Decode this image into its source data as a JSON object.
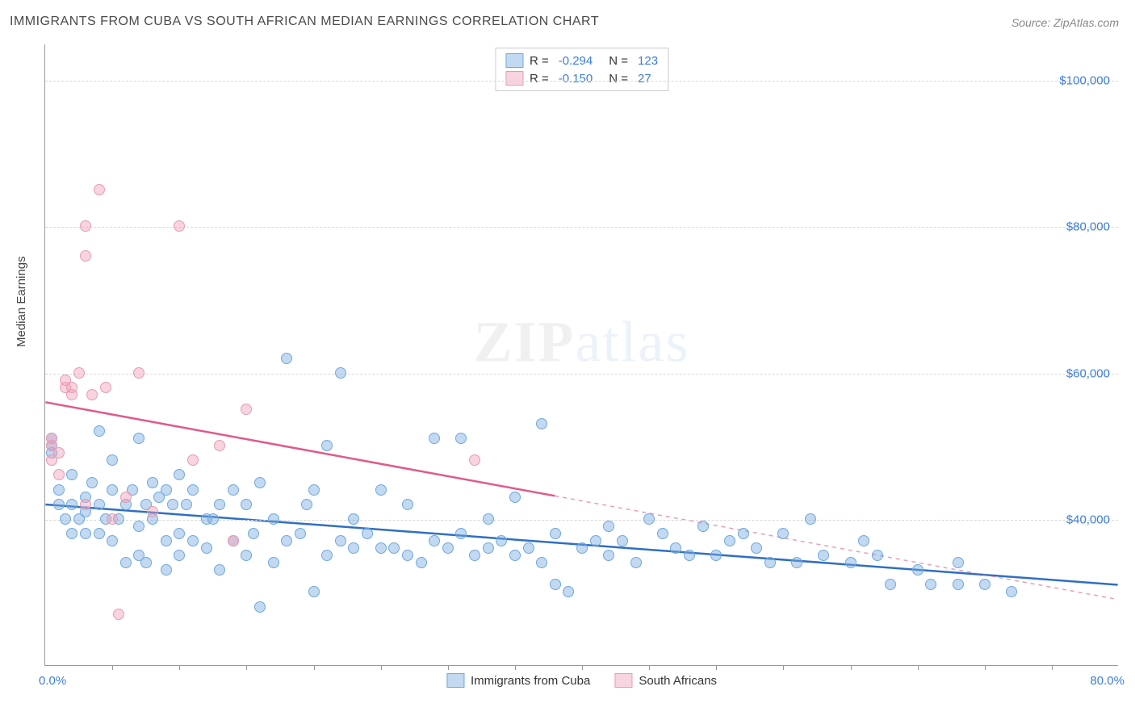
{
  "title": "IMMIGRANTS FROM CUBA VS SOUTH AFRICAN MEDIAN EARNINGS CORRELATION CHART",
  "source": "Source: ZipAtlas.com",
  "ylabel": "Median Earnings",
  "watermark_a": "ZIP",
  "watermark_b": "atlas",
  "chart": {
    "type": "scatter",
    "xlim": [
      0,
      80
    ],
    "ylim": [
      20000,
      105000
    ],
    "x_unit": "%",
    "x_start_label": "0.0%",
    "x_end_label": "80.0%",
    "y_ticks": [
      40000,
      60000,
      80000,
      100000
    ],
    "y_tick_labels": [
      "$40,000",
      "$60,000",
      "$80,000",
      "$100,000"
    ],
    "x_minor_ticks": [
      5,
      10,
      15,
      20,
      25,
      30,
      35,
      40,
      45,
      50,
      55,
      60,
      65,
      70,
      75
    ],
    "background_color": "#ffffff",
    "grid_color": "#d8d8d8",
    "axis_color": "#999999",
    "point_radius": 7,
    "series": [
      {
        "name": "Immigrants from Cuba",
        "short": "cuba",
        "fill": "rgba(120,170,225,0.45)",
        "stroke": "#6fa8dc",
        "line_color": "#2f6fc2",
        "R": "-0.294",
        "N": "123",
        "trend": {
          "x1": 0,
          "y1": 42000,
          "x2": 80,
          "y2": 31000,
          "solid_to_x": 80
        },
        "points": [
          [
            0.5,
            49000
          ],
          [
            0.5,
            50000
          ],
          [
            0.5,
            51000
          ],
          [
            1,
            42000
          ],
          [
            1,
            44000
          ],
          [
            1.5,
            40000
          ],
          [
            2,
            42000
          ],
          [
            2,
            46000
          ],
          [
            2,
            38000
          ],
          [
            2.5,
            40000
          ],
          [
            3,
            43000
          ],
          [
            3,
            41000
          ],
          [
            3,
            38000
          ],
          [
            3.5,
            45000
          ],
          [
            4,
            52000
          ],
          [
            4,
            38000
          ],
          [
            4,
            42000
          ],
          [
            4.5,
            40000
          ],
          [
            5,
            48000
          ],
          [
            5,
            37000
          ],
          [
            5,
            44000
          ],
          [
            5.5,
            40000
          ],
          [
            6,
            42000
          ],
          [
            6,
            34000
          ],
          [
            6.5,
            44000
          ],
          [
            7,
            51000
          ],
          [
            7,
            39000
          ],
          [
            7,
            35000
          ],
          [
            7.5,
            42000
          ],
          [
            7.5,
            34000
          ],
          [
            8,
            45000
          ],
          [
            8,
            40000
          ],
          [
            8.5,
            43000
          ],
          [
            9,
            44000
          ],
          [
            9,
            37000
          ],
          [
            9,
            33000
          ],
          [
            9.5,
            42000
          ],
          [
            10,
            46000
          ],
          [
            10,
            38000
          ],
          [
            10,
            35000
          ],
          [
            10.5,
            42000
          ],
          [
            11,
            44000
          ],
          [
            11,
            37000
          ],
          [
            12,
            40000
          ],
          [
            12,
            36000
          ],
          [
            12.5,
            40000
          ],
          [
            13,
            42000
          ],
          [
            13,
            33000
          ],
          [
            14,
            44000
          ],
          [
            14,
            37000
          ],
          [
            15,
            42000
          ],
          [
            15,
            35000
          ],
          [
            15.5,
            38000
          ],
          [
            16,
            45000
          ],
          [
            16,
            28000
          ],
          [
            17,
            34000
          ],
          [
            17,
            40000
          ],
          [
            18,
            37000
          ],
          [
            18,
            62000
          ],
          [
            19,
            38000
          ],
          [
            19.5,
            42000
          ],
          [
            20,
            44000
          ],
          [
            20,
            30000
          ],
          [
            21,
            35000
          ],
          [
            21,
            50000
          ],
          [
            22,
            60000
          ],
          [
            22,
            37000
          ],
          [
            23,
            36000
          ],
          [
            23,
            40000
          ],
          [
            24,
            38000
          ],
          [
            25,
            36000
          ],
          [
            25,
            44000
          ],
          [
            26,
            36000
          ],
          [
            27,
            35000
          ],
          [
            27,
            42000
          ],
          [
            28,
            34000
          ],
          [
            29,
            51000
          ],
          [
            29,
            37000
          ],
          [
            30,
            36000
          ],
          [
            31,
            51000
          ],
          [
            31,
            38000
          ],
          [
            32,
            35000
          ],
          [
            33,
            36000
          ],
          [
            33,
            40000
          ],
          [
            34,
            37000
          ],
          [
            35,
            35000
          ],
          [
            35,
            43000
          ],
          [
            36,
            36000
          ],
          [
            37,
            53000
          ],
          [
            37,
            34000
          ],
          [
            38,
            31000
          ],
          [
            38,
            38000
          ],
          [
            39,
            30000
          ],
          [
            40,
            36000
          ],
          [
            41,
            37000
          ],
          [
            42,
            35000
          ],
          [
            42,
            39000
          ],
          [
            43,
            37000
          ],
          [
            44,
            34000
          ],
          [
            45,
            40000
          ],
          [
            46,
            38000
          ],
          [
            47,
            36000
          ],
          [
            48,
            35000
          ],
          [
            49,
            39000
          ],
          [
            50,
            35000
          ],
          [
            51,
            37000
          ],
          [
            52,
            38000
          ],
          [
            53,
            36000
          ],
          [
            54,
            34000
          ],
          [
            55,
            38000
          ],
          [
            56,
            34000
          ],
          [
            57,
            40000
          ],
          [
            58,
            35000
          ],
          [
            60,
            34000
          ],
          [
            61,
            37000
          ],
          [
            62,
            35000
          ],
          [
            63,
            31000
          ],
          [
            65,
            33000
          ],
          [
            66,
            31000
          ],
          [
            68,
            34000
          ],
          [
            68,
            31000
          ],
          [
            70,
            31000
          ],
          [
            72,
            30000
          ]
        ]
      },
      {
        "name": "South Africans",
        "short": "sa",
        "fill": "rgba(240,160,185,0.45)",
        "stroke": "#e89ab2",
        "line_color": "#e05a8a",
        "R": "-0.150",
        "N": "27",
        "trend": {
          "x1": 0,
          "y1": 56000,
          "x2": 80,
          "y2": 29000,
          "solid_to_x": 38
        },
        "points": [
          [
            0.5,
            48000
          ],
          [
            0.5,
            50000
          ],
          [
            0.5,
            51000
          ],
          [
            1,
            49000
          ],
          [
            1,
            46000
          ],
          [
            1.5,
            58000
          ],
          [
            1.5,
            59000
          ],
          [
            2,
            58000
          ],
          [
            2,
            57000
          ],
          [
            2.5,
            60000
          ],
          [
            3,
            80000
          ],
          [
            3,
            76000
          ],
          [
            3,
            42000
          ],
          [
            3.5,
            57000
          ],
          [
            4,
            85000
          ],
          [
            4.5,
            58000
          ],
          [
            5,
            40000
          ],
          [
            5.5,
            27000
          ],
          [
            6,
            43000
          ],
          [
            7,
            60000
          ],
          [
            8,
            41000
          ],
          [
            10,
            80000
          ],
          [
            11,
            48000
          ],
          [
            13,
            50000
          ],
          [
            14,
            37000
          ],
          [
            15,
            55000
          ],
          [
            32,
            48000
          ]
        ]
      }
    ]
  },
  "legend_bottom": [
    {
      "label": "Immigrants from Cuba",
      "fill": "rgba(120,170,225,0.45)",
      "stroke": "#6fa8dc"
    },
    {
      "label": "South Africans",
      "fill": "rgba(240,160,185,0.45)",
      "stroke": "#e89ab2"
    }
  ]
}
